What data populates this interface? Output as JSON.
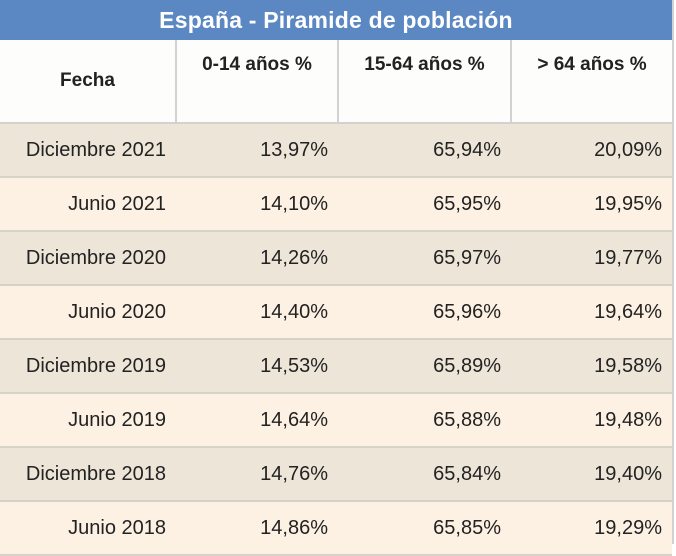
{
  "title": "España - Piramide de población",
  "columns": {
    "fecha": "Fecha",
    "age_0_14": "0-14 años %",
    "age_15_64": "15-64 años %",
    "age_64_plus": "> 64 años %"
  },
  "rows": [
    {
      "fecha": "Diciembre 2021",
      "a": "13,97%",
      "b": "65,94%",
      "c": "20,09%"
    },
    {
      "fecha": "Junio 2021",
      "a": "14,10%",
      "b": "65,95%",
      "c": "19,95%"
    },
    {
      "fecha": "Diciembre 2020",
      "a": "14,26%",
      "b": "65,97%",
      "c": "19,77%"
    },
    {
      "fecha": "Junio 2020",
      "a": "14,40%",
      "b": "65,96%",
      "c": "19,64%"
    },
    {
      "fecha": "Diciembre 2019",
      "a": "14,53%",
      "b": "65,89%",
      "c": "19,58%"
    },
    {
      "fecha": "Junio 2019",
      "a": "14,64%",
      "b": "65,88%",
      "c": "19,48%"
    },
    {
      "fecha": "Diciembre 2018",
      "a": "14,76%",
      "b": "65,84%",
      "c": "19,40%"
    },
    {
      "fecha": "Junio 2018",
      "a": "14,86%",
      "b": "65,85%",
      "c": "19,29%"
    }
  ],
  "colors": {
    "title_bg": "#5b87c3",
    "row_dark": "#ede5d8",
    "row_light": "#fdf1e4"
  }
}
